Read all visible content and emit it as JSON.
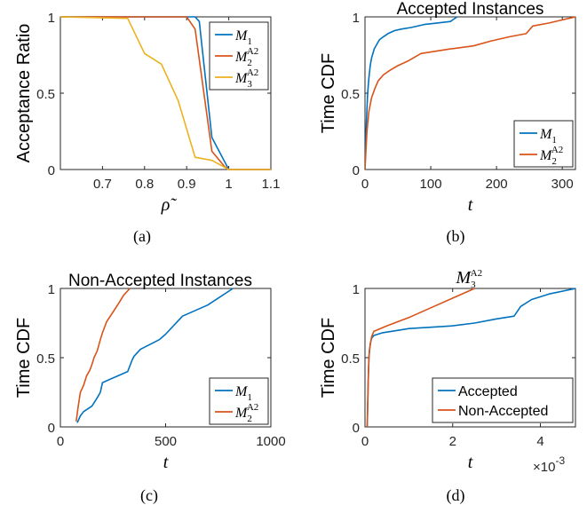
{
  "colors": {
    "M1": "#0072BD",
    "M2": "#D95319",
    "M3": "#EDB120",
    "axis": "#262626"
  },
  "chart_data": [
    {
      "id": "a",
      "type": "line",
      "caption": "(a)",
      "title": "",
      "xlabel": "ρ̃",
      "ylabel": "Acceptance Ratio",
      "xlim": [
        0.6,
        1.1
      ],
      "ylim": [
        0,
        1
      ],
      "xticks": [
        0.7,
        0.8,
        0.9,
        1,
        1.1
      ],
      "xtick_labels": [
        "0.7",
        "0.8",
        "0.9",
        "1",
        "1.1"
      ],
      "yticks": [
        0,
        0.5,
        1
      ],
      "ytick_labels": [
        "0",
        "0.5",
        "1"
      ],
      "legend_position": "top-right",
      "series": [
        {
          "name": "M",
          "sub": "1",
          "sup": "",
          "color": "M1",
          "x": [
            0.6,
            0.92,
            0.93,
            0.96,
            1.0,
            1.1
          ],
          "y": [
            1,
            1,
            0.97,
            0.21,
            0,
            0
          ]
        },
        {
          "name": "M",
          "sub": "2",
          "sup": "A2",
          "color": "M2",
          "x": [
            0.6,
            0.9,
            0.92,
            0.96,
            0.99,
            1.0,
            1.1
          ],
          "y": [
            1,
            1,
            0.92,
            0.12,
            0.02,
            0,
            0
          ]
        },
        {
          "name": "M",
          "sub": "3",
          "sup": "A2",
          "color": "M3",
          "x": [
            0.6,
            0.76,
            0.8,
            0.84,
            0.88,
            0.92,
            0.96,
            1.0,
            1.1
          ],
          "y": [
            1,
            0.99,
            0.76,
            0.69,
            0.45,
            0.08,
            0.06,
            0,
            0
          ]
        }
      ]
    },
    {
      "id": "b",
      "type": "line",
      "caption": "(b)",
      "title": "Accepted Instances",
      "xlabel": "t",
      "ylabel": "Time CDF",
      "xlim": [
        0,
        320
      ],
      "ylim": [
        0,
        1
      ],
      "xticks": [
        0,
        100,
        200,
        300
      ],
      "xtick_labels": [
        "0",
        "100",
        "200",
        "300"
      ],
      "yticks": [
        0,
        0.5,
        1
      ],
      "ytick_labels": [
        "0",
        "0.5",
        "1"
      ],
      "legend_position": "bottom-right",
      "series": [
        {
          "name": "M",
          "sub": "1",
          "sup": "",
          "color": "M1",
          "x": [
            0,
            2,
            4,
            6,
            8,
            10,
            14,
            18,
            22,
            28,
            35,
            45,
            55,
            70,
            90,
            110,
            130,
            140
          ],
          "y": [
            0,
            0.3,
            0.5,
            0.6,
            0.68,
            0.73,
            0.79,
            0.82,
            0.85,
            0.87,
            0.89,
            0.91,
            0.92,
            0.93,
            0.95,
            0.96,
            0.97,
            1
          ]
        },
        {
          "name": "M",
          "sub": "2",
          "sup": "A2",
          "color": "M2",
          "x": [
            0,
            3,
            6,
            10,
            15,
            20,
            28,
            38,
            50,
            65,
            85,
            100,
            130,
            165,
            190,
            220,
            245,
            255,
            280,
            300,
            320
          ],
          "y": [
            0,
            0.25,
            0.38,
            0.47,
            0.53,
            0.58,
            0.62,
            0.65,
            0.68,
            0.71,
            0.76,
            0.77,
            0.79,
            0.81,
            0.84,
            0.87,
            0.89,
            0.94,
            0.96,
            0.98,
            1
          ]
        }
      ]
    },
    {
      "id": "c",
      "type": "line",
      "caption": "(c)",
      "title": "Non-Accepted Instances",
      "xlabel": "t",
      "ylabel": "Time CDF",
      "xlim": [
        0,
        1000
      ],
      "ylim": [
        0,
        1
      ],
      "xticks": [
        0,
        500,
        1000
      ],
      "xtick_labels": [
        "0",
        "500",
        "1000"
      ],
      "yticks": [
        0,
        0.5,
        1
      ],
      "ytick_labels": [
        "0",
        "0.5",
        "1"
      ],
      "legend_position": "bottom-right",
      "series": [
        {
          "name": "M",
          "sub": "1",
          "sup": "",
          "color": "M1",
          "x": [
            80,
            95,
            110,
            130,
            150,
            175,
            190,
            200,
            320,
            340,
            350,
            380,
            470,
            500,
            580,
            700,
            820
          ],
          "y": [
            0.03,
            0.08,
            0.11,
            0.13,
            0.15,
            0.21,
            0.25,
            0.32,
            0.4,
            0.48,
            0.51,
            0.56,
            0.63,
            0.67,
            0.8,
            0.88,
            1
          ]
        },
        {
          "name": "M",
          "sub": "2",
          "sup": "A2",
          "color": "M2",
          "x": [
            75,
            85,
            95,
            110,
            125,
            140,
            150,
            160,
            175,
            190,
            200,
            220,
            250,
            280,
            300,
            330
          ],
          "y": [
            0.04,
            0.15,
            0.25,
            0.3,
            0.37,
            0.41,
            0.45,
            0.5,
            0.55,
            0.63,
            0.68,
            0.76,
            0.83,
            0.9,
            0.95,
            1
          ]
        }
      ]
    },
    {
      "id": "d",
      "type": "line",
      "caption": "(d)",
      "title": "",
      "title_math": {
        "name": "M",
        "sub": "3",
        "sup": "A2"
      },
      "xlabel": "t",
      "x_multiplier": "×10",
      "x_multiplier_exp": "-3",
      "ylabel": "Time CDF",
      "xlim": [
        0,
        4.8
      ],
      "ylim": [
        0,
        1
      ],
      "xticks": [
        0,
        2,
        4
      ],
      "xtick_labels": [
        "0",
        "2",
        "4"
      ],
      "yticks": [
        0,
        0.5,
        1
      ],
      "ytick_labels": [
        "0",
        "0.5",
        "1"
      ],
      "legend_position": "bottom-right",
      "series": [
        {
          "name": "Accepted",
          "color": "M1",
          "x": [
            0.05,
            0.07,
            0.09,
            0.12,
            0.15,
            0.2,
            0.4,
            0.8,
            1.0,
            1.5,
            2.0,
            2.5,
            3.0,
            3.4,
            3.55,
            3.8,
            4.2,
            4.8
          ],
          "y": [
            0,
            0.3,
            0.5,
            0.6,
            0.64,
            0.66,
            0.68,
            0.7,
            0.71,
            0.72,
            0.73,
            0.75,
            0.78,
            0.8,
            0.87,
            0.92,
            0.96,
            1
          ]
        },
        {
          "name": "Non-Accepted",
          "color": "M2",
          "x": [
            0.05,
            0.08,
            0.1,
            0.15,
            0.2,
            0.5,
            1.0,
            1.5,
            2.0,
            2.5
          ],
          "y": [
            0,
            0.4,
            0.55,
            0.65,
            0.69,
            0.73,
            0.79,
            0.86,
            0.93,
            1
          ]
        }
      ]
    }
  ]
}
